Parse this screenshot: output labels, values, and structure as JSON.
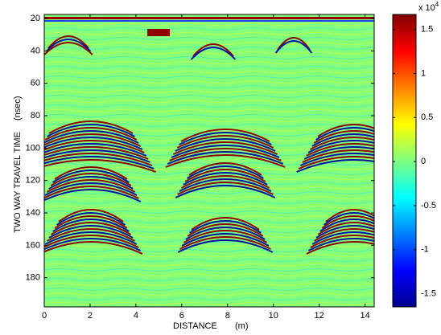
{
  "chart_data": {
    "type": "heatmap",
    "x_label": "DISTANCE",
    "x_unit": "(m)",
    "y_label": "TWO WAY TRAVEL TIME",
    "y_unit": "(nsec)",
    "xlim": [
      0,
      14.4
    ],
    "xticks": [
      0,
      2,
      4,
      6,
      8,
      10,
      12,
      14
    ],
    "ylim": [
      17.5,
      198
    ],
    "yticks": [
      20,
      40,
      60,
      80,
      100,
      120,
      140,
      160,
      180
    ],
    "y_reversed": true,
    "colorbar": {
      "colormap": "jet",
      "clim": [
        -1.65,
        1.67
      ],
      "ticks": [
        -1.5,
        -1,
        -0.5,
        0,
        0.5,
        1,
        1.5
      ],
      "multiplier": "x 10",
      "exponent": "4"
    }
  }
}
